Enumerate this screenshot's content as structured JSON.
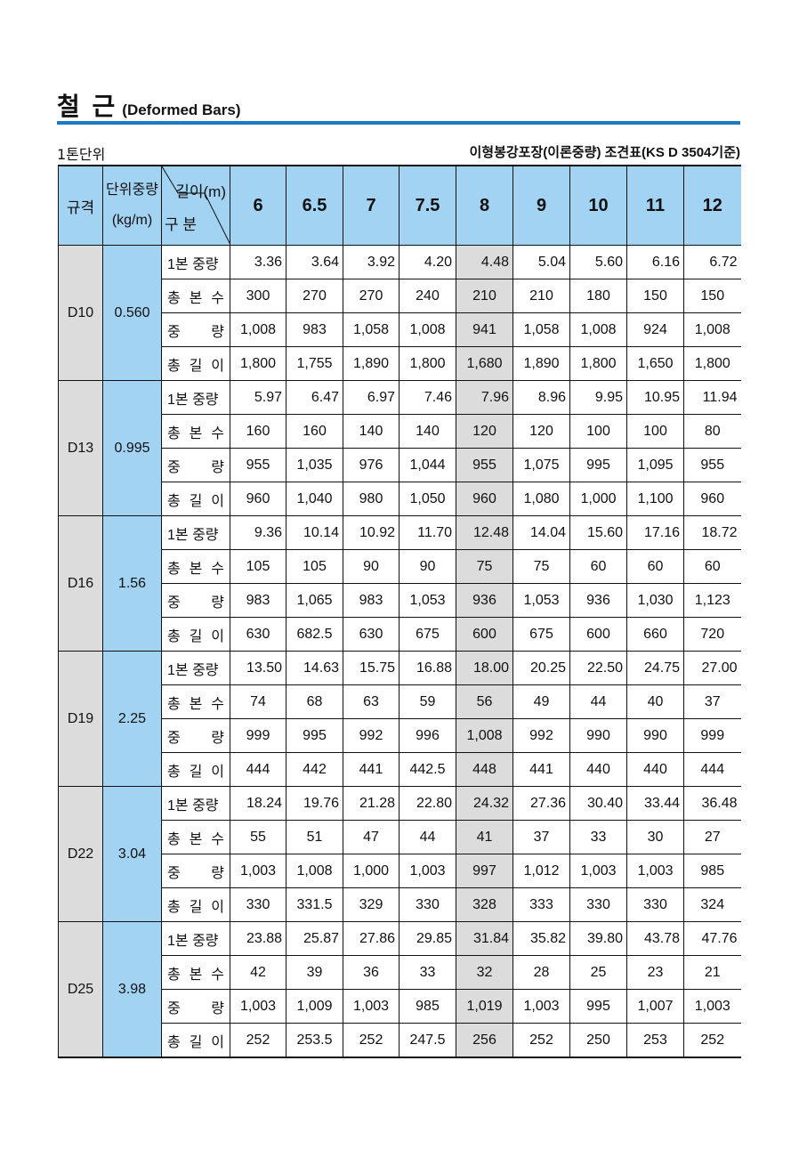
{
  "title": {
    "main": "철 근",
    "sub": "(Deformed Bars)"
  },
  "unit_note": "1톤단위",
  "standard_note": "이형봉강포장(이론중량) 조견표(KS D 3504기준)",
  "colors": {
    "accent": "#1c7ac2",
    "header_bg": "#a3d3f2",
    "highlight": "#dcdcdc"
  },
  "header": {
    "spec": "규격",
    "unit_weight": [
      "단위중량",
      "(kg/m)"
    ],
    "length": "길이(m)",
    "category": "구 분",
    "lengths": [
      "6",
      "6.5",
      "7",
      "7.5",
      "8",
      "9",
      "10",
      "11",
      "12"
    ]
  },
  "highlight_length": "8",
  "row_labels": [
    "1본 중량",
    "총 본 수",
    "중 량",
    "총 길 이"
  ],
  "groups": [
    {
      "spec": "D10",
      "unit_weight": "0.560",
      "rows": [
        [
          "3.36",
          "3.64",
          "3.92",
          "4.20",
          "4.48",
          "5.04",
          "5.60",
          "6.16",
          "6.72"
        ],
        [
          "300",
          "270",
          "270",
          "240",
          "210",
          "210",
          "180",
          "150",
          "150"
        ],
        [
          "1,008",
          "983",
          "1,058",
          "1,008",
          "941",
          "1,058",
          "1,008",
          "924",
          "1,008"
        ],
        [
          "1,800",
          "1,755",
          "1,890",
          "1,800",
          "1,680",
          "1,890",
          "1,800",
          "1,650",
          "1,800"
        ]
      ]
    },
    {
      "spec": "D13",
      "unit_weight": "0.995",
      "rows": [
        [
          "5.97",
          "6.47",
          "6.97",
          "7.46",
          "7.96",
          "8.96",
          "9.95",
          "10.95",
          "11.94"
        ],
        [
          "160",
          "160",
          "140",
          "140",
          "120",
          "120",
          "100",
          "100",
          "80"
        ],
        [
          "955",
          "1,035",
          "976",
          "1,044",
          "955",
          "1,075",
          "995",
          "1,095",
          "955"
        ],
        [
          "960",
          "1,040",
          "980",
          "1,050",
          "960",
          "1,080",
          "1,000",
          "1,100",
          "960"
        ]
      ]
    },
    {
      "spec": "D16",
      "unit_weight": "1.56",
      "rows": [
        [
          "9.36",
          "10.14",
          "10.92",
          "11.70",
          "12.48",
          "14.04",
          "15.60",
          "17.16",
          "18.72"
        ],
        [
          "105",
          "105",
          "90",
          "90",
          "75",
          "75",
          "60",
          "60",
          "60"
        ],
        [
          "983",
          "1,065",
          "983",
          "1,053",
          "936",
          "1,053",
          "936",
          "1,030",
          "1,123"
        ],
        [
          "630",
          "682.5",
          "630",
          "675",
          "600",
          "675",
          "600",
          "660",
          "720"
        ]
      ]
    },
    {
      "spec": "D19",
      "unit_weight": "2.25",
      "rows": [
        [
          "13.50",
          "14.63",
          "15.75",
          "16.88",
          "18.00",
          "20.25",
          "22.50",
          "24.75",
          "27.00"
        ],
        [
          "74",
          "68",
          "63",
          "59",
          "56",
          "49",
          "44",
          "40",
          "37"
        ],
        [
          "999",
          "995",
          "992",
          "996",
          "1,008",
          "992",
          "990",
          "990",
          "999"
        ],
        [
          "444",
          "442",
          "441",
          "442.5",
          "448",
          "441",
          "440",
          "440",
          "444"
        ]
      ]
    },
    {
      "spec": "D22",
      "unit_weight": "3.04",
      "rows": [
        [
          "18.24",
          "19.76",
          "21.28",
          "22.80",
          "24.32",
          "27.36",
          "30.40",
          "33.44",
          "36.48"
        ],
        [
          "55",
          "51",
          "47",
          "44",
          "41",
          "37",
          "33",
          "30",
          "27"
        ],
        [
          "1,003",
          "1,008",
          "1,000",
          "1,003",
          "997",
          "1,012",
          "1,003",
          "1,003",
          "985"
        ],
        [
          "330",
          "331.5",
          "329",
          "330",
          "328",
          "333",
          "330",
          "330",
          "324"
        ]
      ]
    },
    {
      "spec": "D25",
      "unit_weight": "3.98",
      "rows": [
        [
          "23.88",
          "25.87",
          "27.86",
          "29.85",
          "31.84",
          "35.82",
          "39.80",
          "43.78",
          "47.76"
        ],
        [
          "42",
          "39",
          "36",
          "33",
          "32",
          "28",
          "25",
          "23",
          "21"
        ],
        [
          "1,003",
          "1,009",
          "1,003",
          "985",
          "1,019",
          "1,003",
          "995",
          "1,007",
          "1,003"
        ],
        [
          "252",
          "253.5",
          "252",
          "247.5",
          "256",
          "252",
          "250",
          "253",
          "252"
        ]
      ]
    }
  ]
}
